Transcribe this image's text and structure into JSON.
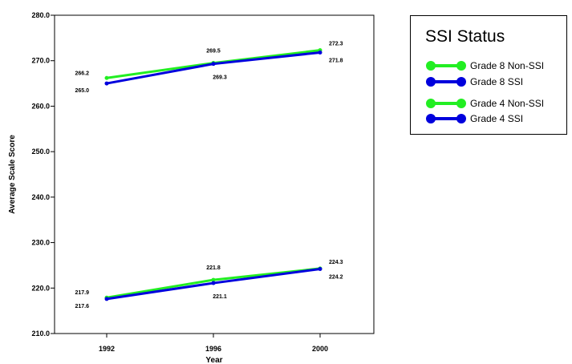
{
  "chart_data": {
    "type": "line",
    "title": "",
    "xlabel": "Year",
    "ylabel": "Average Scale Score",
    "categories": [
      "1992",
      "1996",
      "2000"
    ],
    "ylim": [
      210,
      280
    ],
    "yticks": [
      "210.0",
      "220.0",
      "230.0",
      "240.0",
      "250.0",
      "260.0",
      "270.0",
      "280.0"
    ],
    "grid": false,
    "legend_position": "top-right",
    "legend_title": "SSI Status",
    "series": [
      {
        "name": "Grade 8 Non-SSI",
        "color": "#22ee22",
        "values": [
          266.2,
          269.5,
          272.3
        ],
        "labels": [
          "266.2",
          "269.5",
          "272.3"
        ],
        "label_pos": [
          "left-above",
          "above",
          "right-above"
        ]
      },
      {
        "name": "Grade 8 SSI",
        "color": "#0000dd",
        "values": [
          265.0,
          269.3,
          271.8
        ],
        "labels": [
          "265.0",
          "269.3",
          "271.8"
        ],
        "label_pos": [
          "left-below",
          "below",
          "right-below"
        ]
      },
      {
        "name": "Grade 4 Non-SSI",
        "color": "#22ee22",
        "values": [
          217.9,
          221.8,
          224.3
        ],
        "labels": [
          "217.9",
          "221.8",
          "224.3"
        ],
        "label_pos": [
          "left-above",
          "above",
          "right-above"
        ]
      },
      {
        "name": "Grade 4 SSI",
        "color": "#0000dd",
        "values": [
          217.6,
          221.1,
          224.2
        ],
        "labels": [
          "217.6",
          "221.1",
          "224.2"
        ],
        "label_pos": [
          "left-below",
          "below",
          "right-below"
        ]
      }
    ]
  }
}
